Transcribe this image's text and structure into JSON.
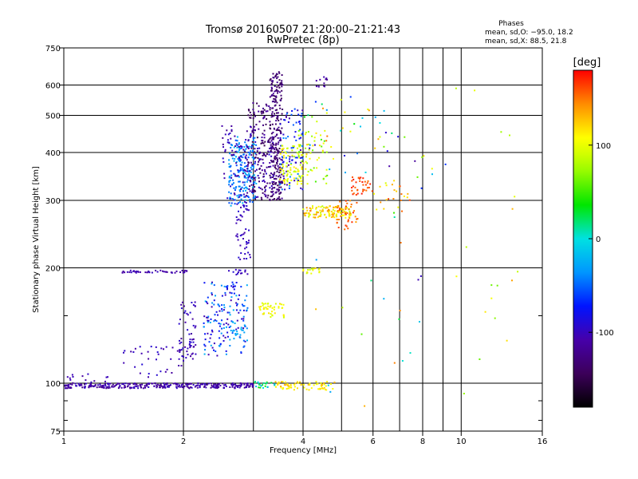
{
  "chart_data": {
    "type": "scatter",
    "title": "Tromsø 20160507 21:20:00–21:21:43",
    "subtitle": "RwPretec (8p)",
    "xlabel": "Frequency [MHz]",
    "ylabel": "Stationary phase Virtual Height [km]",
    "x_scale": "log",
    "y_scale": "log",
    "xlim": [
      1,
      16
    ],
    "ylim": [
      75,
      750
    ],
    "x_ticks": [
      1,
      2,
      4,
      6,
      8,
      10,
      16
    ],
    "x_tick_labels": [
      "1",
      "2",
      "4",
      "6",
      "8",
      "10",
      "16"
    ],
    "x_minor_ticks": [
      3,
      5,
      7,
      9
    ],
    "y_ticks": [
      75,
      100,
      200,
      300,
      400,
      500,
      600,
      750
    ],
    "y_tick_labels": [
      "75",
      "100",
      "200",
      "300",
      "400",
      "500",
      "600",
      "750"
    ],
    "y_minor_ticks": [
      80,
      90,
      150
    ],
    "grid": true,
    "colorbar": {
      "label": "[deg]",
      "range": [
        -180,
        180
      ],
      "ticks": [
        100,
        0,
        -100
      ],
      "tick_labels": [
        "100",
        "0",
        "-100"
      ]
    },
    "stats": {
      "heading": "Phases",
      "line1": "mean, sd,O: −95.0, 18.2",
      "line2": "mean, sd,X:  88.5, 21.8"
    },
    "clusters": [
      {
        "f": [
          1.0,
          3.0
        ],
        "h": [
          97,
          100
        ],
        "phase": [
          -125,
          -95
        ],
        "n": 320
      },
      {
        "f": [
          3.0,
          3.4
        ],
        "h": [
          97,
          101
        ],
        "phase": [
          -30,
          50
        ],
        "n": 25
      },
      {
        "f": [
          3.4,
          4.8
        ],
        "h": [
          96,
          101
        ],
        "phase": [
          100,
          135
        ],
        "n": 70
      },
      {
        "f": [
          1.0,
          1.3
        ],
        "h": [
          100,
          106
        ],
        "phase": [
          -120,
          -95
        ],
        "n": 14
      },
      {
        "f": [
          1.4,
          2.0
        ],
        "h": [
          103,
          125
        ],
        "phase": [
          -115,
          -90
        ],
        "n": 35
      },
      {
        "f": [
          1.4,
          2.05
        ],
        "h": [
          194,
          197
        ],
        "phase": [
          -115,
          -95
        ],
        "n": 45
      },
      {
        "f": [
          2.6,
          2.9
        ],
        "h": [
          192,
          198
        ],
        "phase": [
          -110,
          -90
        ],
        "n": 14
      },
      {
        "f": [
          1.95,
          2.15
        ],
        "h": [
          115,
          165
        ],
        "phase": [
          -115,
          -90
        ],
        "n": 60
      },
      {
        "f": [
          2.25,
          2.9
        ],
        "h": [
          118,
          185
        ],
        "phase": [
          -110,
          -20
        ],
        "n": 160
      },
      {
        "f": [
          2.6,
          2.9
        ],
        "h": [
          130,
          145
        ],
        "phase": [
          -40,
          -20
        ],
        "n": 20
      },
      {
        "f": [
          2.7,
          2.95
        ],
        "h": [
          210,
          300
        ],
        "phase": [
          -110,
          -90
        ],
        "n": 50
      },
      {
        "f": [
          2.6,
          3.05
        ],
        "h": [
          290,
          440
        ],
        "phase": [
          -60,
          -20
        ],
        "n": 200
      },
      {
        "f": [
          2.5,
          3.4
        ],
        "h": [
          300,
          470
        ],
        "phase": [
          -120,
          -90
        ],
        "n": 160
      },
      {
        "f": [
          2.9,
          3.3
        ],
        "h": [
          300,
          540
        ],
        "phase": [
          -150,
          -110
        ],
        "n": 120
      },
      {
        "f": [
          3.3,
          3.55
        ],
        "h": [
          300,
          650
        ],
        "phase": [
          -150,
          -115
        ],
        "n": 260
      },
      {
        "f": [
          3.5,
          4.0
        ],
        "h": [
          320,
          520
        ],
        "phase": [
          -120,
          -30
        ],
        "n": 90
      },
      {
        "f": [
          3.5,
          4.0
        ],
        "h": [
          330,
          420
        ],
        "phase": [
          80,
          120
        ],
        "n": 80
      },
      {
        "f": [
          3.9,
          4.6
        ],
        "h": [
          330,
          460
        ],
        "phase": [
          50,
          125
        ],
        "n": 60
      },
      {
        "f": [
          4.3,
          4.6
        ],
        "h": [
          590,
          630
        ],
        "phase": [
          -120,
          -100
        ],
        "n": 12
      },
      {
        "f": [
          4.0,
          5.3
        ],
        "h": [
          270,
          290
        ],
        "phase": [
          80,
          150
        ],
        "n": 120
      },
      {
        "f": [
          4.8,
          5.5
        ],
        "h": [
          250,
          300
        ],
        "phase": [
          130,
          170
        ],
        "n": 40
      },
      {
        "f": [
          5.3,
          6.0
        ],
        "h": [
          310,
          345
        ],
        "phase": [
          150,
          175
        ],
        "n": 35
      },
      {
        "f": [
          4.0,
          4.4
        ],
        "h": [
          193,
          200
        ],
        "phase": [
          80,
          120
        ],
        "n": 18
      },
      {
        "f": [
          3.1,
          3.6
        ],
        "h": [
          148,
          162
        ],
        "phase": [
          90,
          120
        ],
        "n": 45
      },
      {
        "f": [
          4.0,
          6.5
        ],
        "h": [
          350,
          560
        ],
        "phase": [
          -100,
          150
        ],
        "n": 40
      },
      {
        "f": [
          5.8,
          7.5
        ],
        "h": [
          280,
          330
        ],
        "phase": [
          100,
          170
        ],
        "n": 22
      },
      {
        "f": [
          6.0,
          9.5
        ],
        "h": [
          260,
          450
        ],
        "phase": [
          -120,
          120
        ],
        "n": 18
      },
      {
        "f": [
          8.5,
          14.0
        ],
        "h": [
          85,
          650
        ],
        "phase": [
          60,
          140
        ],
        "n": 18
      },
      {
        "f": [
          3.8,
          8.0
        ],
        "h": [
          82,
          260
        ],
        "phase": [
          -120,
          170
        ],
        "n": 18
      }
    ]
  }
}
